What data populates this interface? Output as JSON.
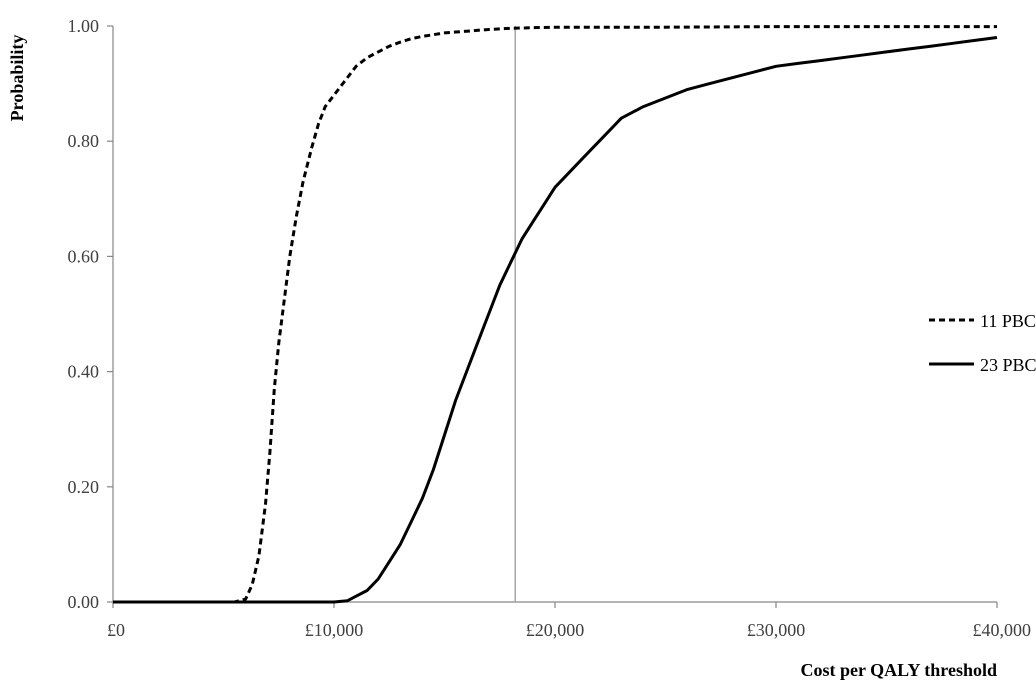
{
  "chart_data": {
    "type": "line",
    "xlabel": "Cost per QALY threshold",
    "ylabel": "Probability",
    "xlim": [
      0,
      40000
    ],
    "ylim": [
      0,
      1
    ],
    "x_ticks": [
      {
        "value": 0,
        "label": "£0"
      },
      {
        "value": 10000,
        "label": "£10,000"
      },
      {
        "value": 20000,
        "label": "£20,000"
      },
      {
        "value": 30000,
        "label": "£30,000"
      },
      {
        "value": 40000,
        "label": "£40,000"
      }
    ],
    "y_ticks": [
      {
        "value": 0,
        "label": "0.00"
      },
      {
        "value": 0.2,
        "label": "0.20"
      },
      {
        "value": 0.4,
        "label": "0.40"
      },
      {
        "value": 0.6,
        "label": "0.60"
      },
      {
        "value": 0.8,
        "label": "0.80"
      },
      {
        "value": 1.0,
        "label": "1.00"
      }
    ],
    "grid": false,
    "legend_position": "right",
    "reference_line_x": 18200,
    "series": [
      {
        "name": "11 PBCs",
        "style": "dashed",
        "color": "#000000",
        "x": [
          0,
          5500,
          6000,
          6300,
          6600,
          6900,
          7100,
          7300,
          7500,
          7800,
          8000,
          8300,
          8600,
          9000,
          9300,
          9600,
          10000,
          10400,
          11000,
          11500,
          12000,
          12500,
          13000,
          13500,
          14000,
          15000,
          16000,
          17000,
          18000,
          19000,
          20000,
          25000,
          30000,
          35000,
          40000
        ],
        "y": [
          0,
          0,
          0.005,
          0.03,
          0.08,
          0.17,
          0.26,
          0.37,
          0.45,
          0.54,
          0.6,
          0.67,
          0.73,
          0.79,
          0.83,
          0.86,
          0.88,
          0.9,
          0.93,
          0.945,
          0.955,
          0.965,
          0.972,
          0.978,
          0.982,
          0.988,
          0.991,
          0.994,
          0.996,
          0.997,
          0.998,
          0.998,
          0.999,
          0.999,
          0.999
        ]
      },
      {
        "name": "23 PBCs",
        "style": "solid",
        "color": "#000000",
        "x": [
          0,
          10000,
          10600,
          11000,
          11500,
          12000,
          12500,
          13000,
          13500,
          14000,
          14500,
          15000,
          15500,
          16000,
          16500,
          17000,
          17500,
          18000,
          18500,
          19000,
          19500,
          20000,
          20500,
          21000,
          21500,
          22000,
          22500,
          23000,
          24000,
          25000,
          26000,
          27000,
          28000,
          29000,
          30000,
          31000,
          32000,
          33000,
          34000,
          35000,
          36000,
          37000,
          38000,
          39000,
          40000
        ],
        "y": [
          0,
          0,
          0.002,
          0.01,
          0.02,
          0.04,
          0.07,
          0.1,
          0.14,
          0.18,
          0.23,
          0.29,
          0.35,
          0.4,
          0.45,
          0.5,
          0.55,
          0.59,
          0.63,
          0.66,
          0.69,
          0.72,
          0.74,
          0.76,
          0.78,
          0.8,
          0.82,
          0.84,
          0.86,
          0.875,
          0.89,
          0.9,
          0.91,
          0.92,
          0.93,
          0.935,
          0.94,
          0.945,
          0.95,
          0.955,
          0.96,
          0.965,
          0.97,
          0.975,
          0.98
        ]
      }
    ]
  }
}
